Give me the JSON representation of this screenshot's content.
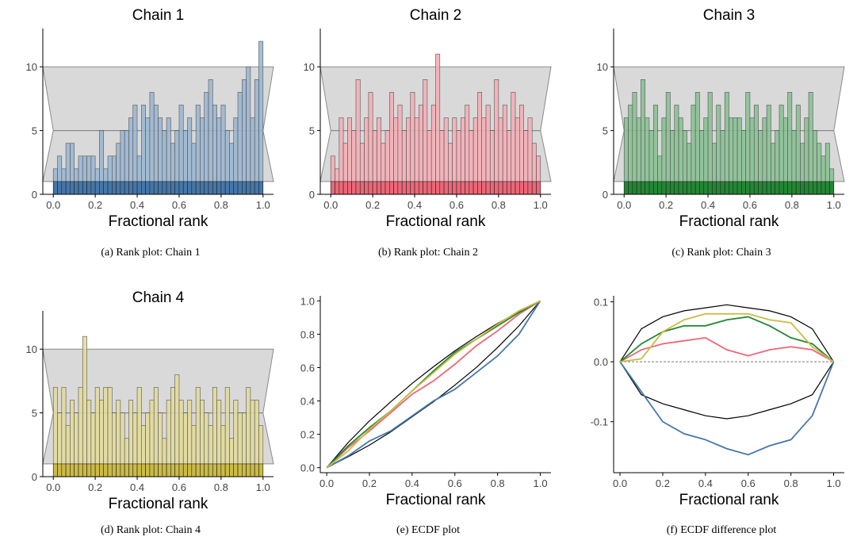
{
  "chart_data": [
    {
      "type": "bar",
      "title": "Chain 1",
      "xlabel": "Fractional rank",
      "caption": "(a) Rank plot: Chain 1",
      "color": "#4477AA",
      "xlim": [
        -0.05,
        1.05
      ],
      "ylim": [
        0,
        13
      ],
      "xticks": [
        "0.0",
        "0.2",
        "0.4",
        "0.6",
        "0.8",
        "1.0"
      ],
      "yticks": [
        "0",
        "5",
        "10"
      ],
      "band": {
        "lower": 1,
        "center": 5,
        "upper": 10
      },
      "bins": 50,
      "values": [
        2,
        3,
        2,
        4,
        4,
        2,
        3,
        3,
        3,
        3,
        2,
        5,
        2,
        3,
        3,
        4,
        5,
        5,
        6,
        7,
        3,
        7,
        6,
        8,
        7,
        6,
        5,
        6,
        4,
        5,
        7,
        5,
        6,
        4,
        7,
        6,
        8,
        9,
        7,
        6,
        7,
        5,
        4,
        6,
        8,
        9,
        10,
        6,
        9,
        12
      ]
    },
    {
      "type": "bar",
      "title": "Chain 2",
      "xlabel": "Fractional rank",
      "caption": "(b) Rank plot: Chain 2",
      "color": "#EE6677",
      "xlim": [
        -0.05,
        1.05
      ],
      "ylim": [
        0,
        13
      ],
      "xticks": [
        "0.0",
        "0.2",
        "0.4",
        "0.6",
        "0.8",
        "1.0"
      ],
      "yticks": [
        "0",
        "5",
        "10"
      ],
      "band": {
        "lower": 1,
        "center": 5,
        "upper": 10
      },
      "bins": 50,
      "values": [
        3,
        2,
        6,
        4,
        6,
        5,
        9,
        4,
        6,
        8,
        5,
        6,
        4,
        5,
        8,
        6,
        7,
        5,
        6,
        8,
        6,
        7,
        9,
        5,
        7,
        11,
        5,
        6,
        4,
        6,
        5,
        6,
        7,
        5,
        6,
        8,
        6,
        7,
        5,
        9,
        6,
        7,
        5,
        8,
        6,
        7,
        5,
        6,
        4,
        3
      ]
    },
    {
      "type": "bar",
      "title": "Chain 3",
      "xlabel": "Fractional rank",
      "caption": "(c) Rank plot: Chain 3",
      "color": "#228833",
      "xlim": [
        -0.05,
        1.05
      ],
      "ylim": [
        0,
        13
      ],
      "xticks": [
        "0.0",
        "0.2",
        "0.4",
        "0.6",
        "0.8",
        "1.0"
      ],
      "yticks": [
        "0",
        "5",
        "10"
      ],
      "band": {
        "lower": 1,
        "center": 5,
        "upper": 10
      },
      "bins": 50,
      "values": [
        6,
        7,
        8,
        6,
        9,
        6,
        5,
        7,
        3,
        6,
        8,
        5,
        7,
        6,
        5,
        4,
        7,
        8,
        5,
        6,
        8,
        4,
        7,
        5,
        8,
        6,
        6,
        6,
        5,
        8,
        6,
        7,
        5,
        6,
        7,
        4,
        5,
        7,
        6,
        8,
        5,
        7,
        4,
        6,
        8,
        5,
        4,
        3,
        4,
        2
      ]
    },
    {
      "type": "bar",
      "title": "Chain 4",
      "xlabel": "Fractional rank",
      "caption": "(d) Rank plot: Chain 4",
      "color": "#CCBB44",
      "xlim": [
        -0.05,
        1.05
      ],
      "ylim": [
        0,
        13
      ],
      "xticks": [
        "0.0",
        "0.2",
        "0.4",
        "0.6",
        "0.8",
        "1.0"
      ],
      "yticks": [
        "0",
        "5",
        "10"
      ],
      "band": {
        "lower": 1,
        "center": 5,
        "upper": 10
      },
      "bins": 50,
      "values": [
        7,
        5,
        7,
        4,
        6,
        5,
        7,
        11,
        6,
        5,
        7,
        6,
        7,
        7,
        5,
        6,
        5,
        3,
        6,
        5,
        7,
        4,
        5,
        6,
        7,
        5,
        3,
        6,
        7,
        8,
        6,
        5,
        6,
        4,
        7,
        6,
        5,
        4,
        7,
        6,
        4,
        7,
        3,
        6,
        5,
        5,
        7,
        6,
        6,
        4
      ]
    },
    {
      "type": "line",
      "title": "",
      "xlabel": "Fractional rank",
      "caption": "(e) ECDF plot",
      "xlim": [
        -0.03,
        1.05
      ],
      "ylim": [
        -0.03,
        1.03
      ],
      "xticks": [
        "0.0",
        "0.2",
        "0.4",
        "0.6",
        "0.8",
        "1.0"
      ],
      "yticks": [
        "0.0",
        "0.2",
        "0.4",
        "0.6",
        "0.8",
        "1.0"
      ],
      "x": [
        0,
        0.1,
        0.2,
        0.3,
        0.4,
        0.5,
        0.6,
        0.7,
        0.8,
        0.9,
        1.0
      ],
      "envelope": {
        "upper": [
          0,
          0.15,
          0.28,
          0.395,
          0.505,
          0.605,
          0.7,
          0.785,
          0.865,
          0.935,
          1.0
        ],
        "lower": [
          0,
          0.065,
          0.135,
          0.215,
          0.305,
          0.395,
          0.495,
          0.6,
          0.72,
          0.85,
          1.0
        ]
      },
      "series": [
        {
          "color": "#4477AA",
          "values": [
            0,
            0.07,
            0.16,
            0.22,
            0.31,
            0.4,
            0.47,
            0.57,
            0.67,
            0.8,
            1.0
          ]
        },
        {
          "color": "#EE6677",
          "values": [
            0,
            0.12,
            0.22,
            0.33,
            0.44,
            0.52,
            0.62,
            0.73,
            0.82,
            0.92,
            1.0
          ]
        },
        {
          "color": "#228833",
          "values": [
            0,
            0.13,
            0.24,
            0.34,
            0.46,
            0.58,
            0.69,
            0.77,
            0.85,
            0.93,
            1.0
          ]
        },
        {
          "color": "#CCBB44",
          "values": [
            0,
            0.1,
            0.23,
            0.34,
            0.46,
            0.57,
            0.68,
            0.77,
            0.86,
            0.94,
            1.0
          ]
        }
      ]
    },
    {
      "type": "line",
      "title": "",
      "xlabel": "Fractional rank",
      "caption": "(f) ECDF difference plot",
      "xlim": [
        -0.03,
        1.05
      ],
      "ylim": [
        -0.185,
        0.11
      ],
      "xticks": [
        "0.0",
        "0.2",
        "0.4",
        "0.6",
        "0.8",
        "1.0"
      ],
      "yticks": [
        "-0.1",
        "0.0",
        "0.1"
      ],
      "ytick_values": [
        -0.1,
        0.0,
        0.1
      ],
      "reference_line": 0.0,
      "x": [
        0,
        0.1,
        0.2,
        0.3,
        0.4,
        0.5,
        0.6,
        0.7,
        0.8,
        0.9,
        1.0
      ],
      "envelope": {
        "upper": [
          0,
          0.055,
          0.075,
          0.085,
          0.09,
          0.095,
          0.09,
          0.085,
          0.075,
          0.055,
          0
        ],
        "lower": [
          0,
          -0.055,
          -0.07,
          -0.08,
          -0.09,
          -0.095,
          -0.09,
          -0.08,
          -0.07,
          -0.055,
          0
        ]
      },
      "series": [
        {
          "color": "#4477AA",
          "values": [
            0,
            -0.05,
            -0.1,
            -0.12,
            -0.13,
            -0.145,
            -0.155,
            -0.14,
            -0.13,
            -0.09,
            0
          ]
        },
        {
          "color": "#EE6677",
          "values": [
            0,
            0.02,
            0.03,
            0.035,
            0.04,
            0.02,
            0.01,
            0.02,
            0.025,
            0.02,
            0
          ]
        },
        {
          "color": "#228833",
          "values": [
            0,
            0.03,
            0.05,
            0.06,
            0.06,
            0.07,
            0.075,
            0.06,
            0.04,
            0.03,
            0
          ]
        },
        {
          "color": "#CCBB44",
          "values": [
            0,
            0.005,
            0.05,
            0.07,
            0.08,
            0.08,
            0.08,
            0.07,
            0.065,
            0.025,
            0
          ]
        }
      ]
    }
  ]
}
